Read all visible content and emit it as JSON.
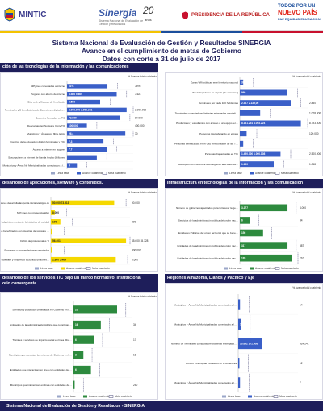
{
  "header": {
    "ministry": "MINTIC",
    "brand": "Sinergia",
    "brand_sub": "Sistema Nacional de Evaluación de Gestión y Resultados",
    "anios": "20",
    "anios_label": "años",
    "presidencia": "PRESIDENCIA DE LA REPÚBLICA",
    "slogan_a": "TODOS POR UN",
    "slogan_b": "NUEVO PAÍS",
    "slogan_c": "PAZ EQUIDAD EDUCACIÓN"
  },
  "title": {
    "line1": "Sistema Nacional de Evaluación de Gestión y Resultados SINERGIA",
    "line2": "Avance en el cumplimiento de metas de Gobierno",
    "line3": "Datos con corte a 31 de julio de 2017"
  },
  "sections": {
    "s1": "ción de las tecnologías de la información y las comunicaciones",
    "s2": "desarrollo de aplicaciones, software y contenidos.",
    "s3": "Infraestructura en tecnologías de la información y las comunicacion",
    "s4": "desarrollo de los servicios TIC bajo un marco normativo, institucional",
    "s4b": "orio convergente.",
    "s5": "Regiones Amazonía, Llanos y Pacífico y Eje"
  },
  "legend": {
    "base": "Línea base",
    "avance": "Avance cuatrienio",
    "meta": "Meta cuatrienio"
  },
  "colors": {
    "navy": "#1e1e5a",
    "blue_bar": "#3a5fc8",
    "yellow_bar": "#f5d800",
    "green_bar": "#2d8a3e",
    "grey_bar": "#9aa6c8"
  },
  "chart_data": [
    {
      "type": "bar",
      "pct_header": "% Avance total cuatrienio",
      "categories": [
        "MiPymes conectadas a internet",
        "Hogares con ahorro de internet",
        "Sitio web y Kioscos de Ampliación",
        "Terminales y 5 beneficiarios de Conexiones digitales (millones)",
        "Docentes formados en TIC",
        "Descargas por Software ConviTIC",
        "Municipios y Áreas con fibra óptica",
        "Centros de la educación digital (terminales y TIC)",
        "Acceso a Internet en hogares",
        "Suscripciones a internet de Banda Ancha (Millones)",
        "Municipios y Áreas No Municipalizadas conectados a la red de alta velocidad"
      ],
      "bar_labels": [
        "61%",
        "",
        "4.586",
        "",
        "73.560",
        "100.000",
        "26,4",
        "7.3",
        "7.7",
        "",
        ""
      ],
      "base_labels": [
        "",
        "8.586",
        "",
        "2.000.000",
        "",
        "",
        "",
        "",
        "",
        "",
        ""
      ],
      "avance_labels": [
        "",
        "9.869",
        "",
        "2.000.341",
        "",
        "",
        "",
        "",
        "",
        "",
        "4"
      ],
      "meta_labels": [
        "75%",
        "7.621",
        "",
        "2.000.000",
        "87.000",
        "400.000",
        "30",
        "",
        "",
        "",
        ""
      ],
      "pct_labels": [
        "",
        "",
        "",
        "",
        "",
        "",
        "",
        "",
        "",
        "",
        ""
      ]
    },
    {
      "type": "bar",
      "pct_header": "% Avance total cuatrienio",
      "categories": [
        "Zonas Wifi públicas en el territorio nacional",
        "Teletrabajadores en el país (de consumo)",
        "Terminales por cada 100 habitantes",
        "Terminales computadores/tabletas entregadas a estudiantes y docentes",
        "Productores y estudiantes con acceso a un equipo terminal",
        "Personas teletrabajando en el país",
        "Personas beneficiadas en el Uso Responsable de las TIC",
        "Personas Capacitadas en TIC",
        "Municipios con cobertura tecnología de alta velocidad (tecnológica)"
      ],
      "bar_labels": [
        "300",
        "960",
        "2.367  2.135,06",
        "",
        "8.131.251  4.093.224",
        "",
        "",
        "1.450.000  1.000.108",
        "1.160"
      ],
      "meta_labels": [
        "",
        "",
        "2.850",
        "1.028.000",
        "8.793.600",
        "120.000",
        "",
        "2.500.000",
        "1.068"
      ],
      "pct_labels": [
        "",
        "",
        "",
        "",
        "",
        "",
        "",
        "",
        ""
      ]
    },
    {
      "type": "bar",
      "pct_header": "% Avance total cuatrienio",
      "categories": [
        "Aplicaciones desarrolladas por la iniciativa Apps.co",
        "MiPymes con presencia Web",
        "TIC adquiridos mediante la iniciativa de calidad",
        "Trabajadores beneficiados con licencias de software y tecnologías para la generación de contenidos",
        "Déficit de profesionales TI",
        "Empresas y emprendedores conectados",
        "Servicios de software y empresas facturado (millones y Apps y Contenidos)"
      ],
      "base_labels": [
        "50.000",
        "",
        "100",
        "",
        "",
        "",
        "1.800"
      ],
      "avance_labels": [
        "73.513",
        "",
        "",
        "",
        "56.401",
        "",
        "5.464"
      ],
      "meta_labels": [
        "90.000",
        "",
        "800",
        "",
        "45.600  35.328",
        "800.000",
        "6.600"
      ],
      "extra": [
        "",
        "8.000",
        "",
        "",
        "",
        "",
        ""
      ],
      "pct_labels": [
        "",
        "",
        "",
        "",
        "",
        "",
        ""
      ]
    },
    {
      "type": "bar",
      "pct_header": "% Avance total cuatrienio",
      "categories": [
        "Número de gobierno capacitados para fortalecer la gestión de la tecnología de la información en el Estado",
        "Servicios de la administración pública del orden nacional que adoptan el marco de referencia de arquitectura empresarial para la gestión de las TIC",
        "Entidades Públicas del orden territorial que se benefician de recursos dentro de gestión para la modernización de la infraestructura",
        "Entidades de la administración pública del orden nacional y territorial que publican servicios interoperables en la plataforma del Estado",
        "Entidades de la administración pública del orden nacional y territorial que adoptan instrumentos del modelo de gestión de TIC"
      ],
      "avance_labels": [
        "3.277",
        "6",
        "156",
        "317",
        "189"
      ],
      "meta_labels": [
        "4.000",
        "34",
        "",
        "387",
        "210"
      ],
      "pct_labels": [
        "",
        "",
        "",
        "",
        ""
      ]
    },
    {
      "type": "bar",
      "pct_header": "% Avance total cuatrienio",
      "categories": [
        "Servicios y productos certificados en Gobierno en línea",
        "Entidades de la administración pública que completan su modelo de seguridad y privacidad",
        "Trámites y servicios de impacto social en línea (Ruta de la Excelencia)",
        "Municipios que conectan las mismas de Gobierno en línea",
        "Entidades que interactúan en línea con entidades de gobierno",
        "Municipios que interactúan en línea con entidades de gobierno"
      ],
      "avance_labels": [
        "20",
        "16",
        "6",
        "3",
        "6",
        ""
      ],
      "meta_labels": [
        "",
        "34",
        "17",
        "18",
        "",
        "250"
      ],
      "pct_labels": [
        "",
        "",
        "",
        "",
        "",
        ""
      ]
    },
    {
      "type": "bar",
      "pct_header": "% Avance total cuatrienio",
      "categories": [
        "Municipios y Áreas No Municipalizadas conectados a la red de alta velocidad en la Amazonía",
        "Municipios y Áreas No Municipalizadas conectados a la red de alta velocidad en el Llano",
        "Número de Terminales computadores/tabletas entregadas para escuelas, estudiantes y docentes (Eje Cafetero)",
        "Puntos Vive Digital instalados en la Amazonía",
        "Municipios y Áreas No Municipalizadas conectados a la red de alta velocidad en Amazonía"
      ],
      "base_labels": [
        "",
        "",
        "30.892",
        "",
        ""
      ],
      "avance_labels": [
        "",
        "",
        "171.408",
        "",
        ""
      ],
      "meta_labels": [
        "14",
        "",
        "424.241",
        "12",
        "7"
      ],
      "extra": [
        "",
        "11",
        "",
        "",
        ""
      ],
      "pct_labels": [
        "",
        "",
        "",
        "",
        ""
      ]
    }
  ],
  "footer": {
    "text": "Sistema Nacional de Evaluación de Gestión y Resultados - SINERGIA"
  }
}
